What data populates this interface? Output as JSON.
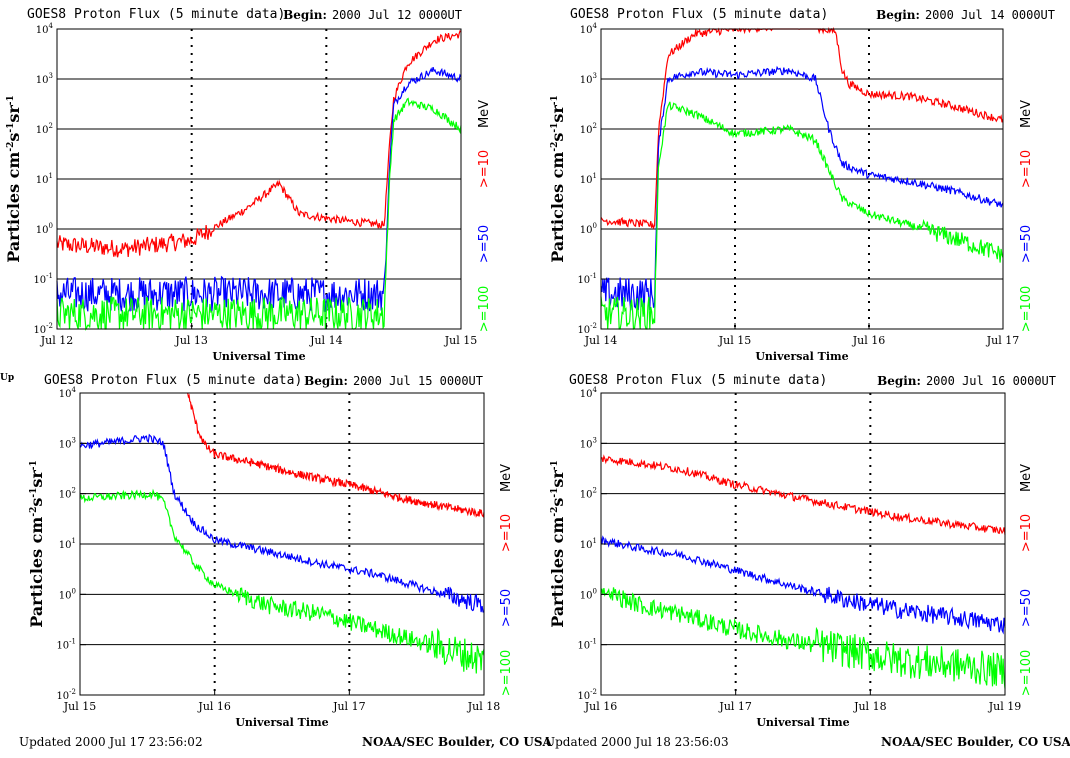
{
  "page": {
    "fragment": "Up",
    "footers": [
      {
        "updated": "Updated 2000 Jul 17 23:56:02",
        "org": "NOAA/SEC Boulder, CO USA"
      },
      {
        "updated": "Updated 2000 Jul 18 23:56:03",
        "org": "NOAA/SEC Boulder, CO USA"
      }
    ]
  },
  "chart_data": [
    {
      "type": "line",
      "title": "GOES8 Proton Flux (5 minute data)",
      "begin_label": "Begin:",
      "begin_value": "2000 Jul 12 0000UT",
      "xlabel": "Universal Time",
      "ylabel": "Particles cm-2s-1sr-1",
      "yscale": "log",
      "ylim": [
        0.01,
        10000
      ],
      "xlim": [
        0,
        3
      ],
      "x_unit": "days since Jul 12 00 UT",
      "x_ticks": [
        "Jul 12",
        "Jul 13",
        "Jul 14",
        "Jul 15"
      ],
      "y_ticks": [
        "10^-2",
        "10^-1",
        "10^0",
        "10^1",
        "10^2",
        "10^3",
        "10^4"
      ],
      "grid": true,
      "legend_position": "right",
      "legend_unit": "MeV",
      "series": [
        {
          "name": ">=10",
          "color": "#ff0000",
          "points": [
            [
              0,
              0.5
            ],
            [
              0.5,
              0.4
            ],
            [
              1.0,
              0.6
            ],
            [
              1.2,
              1.2
            ],
            [
              1.4,
              2.5
            ],
            [
              1.65,
              8
            ],
            [
              1.8,
              2
            ],
            [
              2.1,
              1.5
            ],
            [
              2.43,
              1.2
            ],
            [
              2.47,
              50
            ],
            [
              2.5,
              400
            ],
            [
              2.6,
              2000
            ],
            [
              2.8,
              6000
            ],
            [
              3.0,
              8000
            ]
          ]
        },
        {
          "name": ">=50",
          "color": "#0000ff",
          "points": [
            [
              0,
              0.05
            ],
            [
              0.5,
              0.05
            ],
            [
              1.0,
              0.05
            ],
            [
              1.5,
              0.05
            ],
            [
              2.0,
              0.05
            ],
            [
              2.43,
              0.05
            ],
            [
              2.47,
              20
            ],
            [
              2.5,
              300
            ],
            [
              2.6,
              800
            ],
            [
              2.8,
              1500
            ],
            [
              3.0,
              1000
            ]
          ]
        },
        {
          "name": ">=100",
          "color": "#00ff00",
          "points": [
            [
              0,
              0.02
            ],
            [
              0.5,
              0.02
            ],
            [
              1.0,
              0.02
            ],
            [
              1.5,
              0.02
            ],
            [
              2.0,
              0.02
            ],
            [
              2.43,
              0.02
            ],
            [
              2.47,
              10
            ],
            [
              2.5,
              150
            ],
            [
              2.6,
              350
            ],
            [
              2.8,
              250
            ],
            [
              3.0,
              100
            ]
          ]
        }
      ]
    },
    {
      "type": "line",
      "title": "GOES8 Proton Flux (5 minute data)",
      "begin_label": "Begin:",
      "begin_value": "2000 Jul 14 0000UT",
      "xlabel": "Universal Time",
      "ylabel": "Particles cm-2s-1sr-1",
      "yscale": "log",
      "ylim": [
        0.01,
        10000
      ],
      "xlim": [
        0,
        3
      ],
      "x_unit": "days since Jul 14 00 UT",
      "x_ticks": [
        "Jul 14",
        "Jul 15",
        "Jul 16",
        "Jul 17"
      ],
      "y_ticks": [
        "10^-2",
        "10^-1",
        "10^0",
        "10^1",
        "10^2",
        "10^3",
        "10^4"
      ],
      "grid": true,
      "legend_position": "right",
      "legend_unit": "MeV",
      "series": [
        {
          "name": ">=10",
          "color": "#ff0000",
          "points": [
            [
              0,
              1.5
            ],
            [
              0.4,
              1.2
            ],
            [
              0.43,
              100
            ],
            [
              0.5,
              3000
            ],
            [
              0.7,
              8000
            ],
            [
              1.0,
              10000
            ],
            [
              1.5,
              12000
            ],
            [
              1.75,
              9000
            ],
            [
              1.8,
              1500
            ],
            [
              1.85,
              800
            ],
            [
              2.0,
              500
            ],
            [
              2.3,
              450
            ],
            [
              2.6,
              300
            ],
            [
              3.0,
              150
            ]
          ]
        },
        {
          "name": ">=50",
          "color": "#0000ff",
          "points": [
            [
              0,
              0.05
            ],
            [
              0.4,
              0.05
            ],
            [
              0.43,
              50
            ],
            [
              0.5,
              1000
            ],
            [
              0.7,
              1400
            ],
            [
              1.0,
              1200
            ],
            [
              1.4,
              1500
            ],
            [
              1.6,
              1000
            ],
            [
              1.7,
              100
            ],
            [
              1.8,
              20
            ],
            [
              2.0,
              12
            ],
            [
              2.3,
              9
            ],
            [
              2.6,
              6
            ],
            [
              3.0,
              3
            ]
          ]
        },
        {
          "name": ">=100",
          "color": "#00ff00",
          "points": [
            [
              0,
              0.02
            ],
            [
              0.4,
              0.02
            ],
            [
              0.43,
              20
            ],
            [
              0.5,
              300
            ],
            [
              0.7,
              200
            ],
            [
              1.0,
              80
            ],
            [
              1.4,
              100
            ],
            [
              1.6,
              60
            ],
            [
              1.7,
              15
            ],
            [
              1.8,
              4
            ],
            [
              2.0,
              2
            ],
            [
              2.3,
              1.2
            ],
            [
              2.6,
              0.7
            ],
            [
              3.0,
              0.3
            ]
          ]
        }
      ]
    },
    {
      "type": "line",
      "title": "GOES8 Proton Flux (5 minute data)",
      "begin_label": "Begin:",
      "begin_value": "2000 Jul 15 0000UT",
      "xlabel": "Universal Time",
      "ylabel": "Particles cm-2s-1sr-1",
      "yscale": "log",
      "ylim": [
        0.01,
        10000
      ],
      "xlim": [
        0,
        3
      ],
      "x_unit": "days since Jul 15 00 UT",
      "x_ticks": [
        "Jul 15",
        "Jul 16",
        "Jul 17",
        "Jul 18"
      ],
      "y_ticks": [
        "10^-2",
        "10^-1",
        "10^0",
        "10^1",
        "10^2",
        "10^3",
        "10^4"
      ],
      "grid": true,
      "legend_position": "right",
      "legend_unit": "MeV",
      "series": [
        {
          "name": ">=10",
          "color": "#ff0000",
          "points": [
            [
              0.8,
              10000
            ],
            [
              0.87,
              2000
            ],
            [
              0.93,
              900
            ],
            [
              1.0,
              600
            ],
            [
              1.3,
              400
            ],
            [
              1.6,
              250
            ],
            [
              2.0,
              150
            ],
            [
              2.4,
              80
            ],
            [
              2.7,
              55
            ],
            [
              3.0,
              40
            ]
          ]
        },
        {
          "name": ">=50",
          "color": "#0000ff",
          "points": [
            [
              0,
              900
            ],
            [
              0.3,
              1100
            ],
            [
              0.5,
              1300
            ],
            [
              0.62,
              1000
            ],
            [
              0.7,
              100
            ],
            [
              0.85,
              25
            ],
            [
              1.0,
              12
            ],
            [
              1.4,
              7
            ],
            [
              1.8,
              4
            ],
            [
              2.2,
              2.5
            ],
            [
              2.6,
              1.2
            ],
            [
              3.0,
              0.6
            ]
          ]
        },
        {
          "name": ">=100",
          "color": "#00ff00",
          "points": [
            [
              0,
              80
            ],
            [
              0.3,
              90
            ],
            [
              0.55,
              100
            ],
            [
              0.62,
              70
            ],
            [
              0.7,
              15
            ],
            [
              0.85,
              4
            ],
            [
              1.0,
              1.5
            ],
            [
              1.4,
              0.6
            ],
            [
              1.8,
              0.4
            ],
            [
              2.2,
              0.2
            ],
            [
              2.6,
              0.1
            ],
            [
              3.0,
              0.05
            ]
          ]
        }
      ]
    },
    {
      "type": "line",
      "title": "GOES8 Proton Flux (5 minute data)",
      "begin_label": "Begin:",
      "begin_value": "2000 Jul 16 0000UT",
      "xlabel": "Universal Time",
      "ylabel": "Particles cm-2s-1sr-1",
      "yscale": "log",
      "ylim": [
        0.01,
        10000
      ],
      "xlim": [
        0,
        3
      ],
      "x_unit": "days since Jul 16 00 UT",
      "x_ticks": [
        "Jul 16",
        "Jul 17",
        "Jul 18",
        "Jul 19"
      ],
      "y_ticks": [
        "10^-2",
        "10^-1",
        "10^0",
        "10^1",
        "10^2",
        "10^3",
        "10^4"
      ],
      "grid": true,
      "legend_position": "right",
      "legend_unit": "MeV",
      "series": [
        {
          "name": ">=10",
          "color": "#ff0000",
          "points": [
            [
              0,
              500
            ],
            [
              0.3,
              400
            ],
            [
              0.6,
              300
            ],
            [
              1.0,
              150
            ],
            [
              1.4,
              90
            ],
            [
              1.8,
              55
            ],
            [
              2.2,
              35
            ],
            [
              2.6,
              25
            ],
            [
              3.0,
              18
            ]
          ]
        },
        {
          "name": ">=50",
          "color": "#0000ff",
          "points": [
            [
              0,
              12
            ],
            [
              0.3,
              8
            ],
            [
              0.6,
              6
            ],
            [
              1.0,
              3
            ],
            [
              1.4,
              1.5
            ],
            [
              1.8,
              0.8
            ],
            [
              2.2,
              0.5
            ],
            [
              2.6,
              0.35
            ],
            [
              3.0,
              0.25
            ]
          ]
        },
        {
          "name": ">=100",
          "color": "#00ff00",
          "points": [
            [
              0,
              1.2
            ],
            [
              0.3,
              0.6
            ],
            [
              0.6,
              0.4
            ],
            [
              1.0,
              0.2
            ],
            [
              1.4,
              0.12
            ],
            [
              1.8,
              0.08
            ],
            [
              2.2,
              0.05
            ],
            [
              2.6,
              0.04
            ],
            [
              3.0,
              0.03
            ]
          ]
        }
      ]
    }
  ]
}
